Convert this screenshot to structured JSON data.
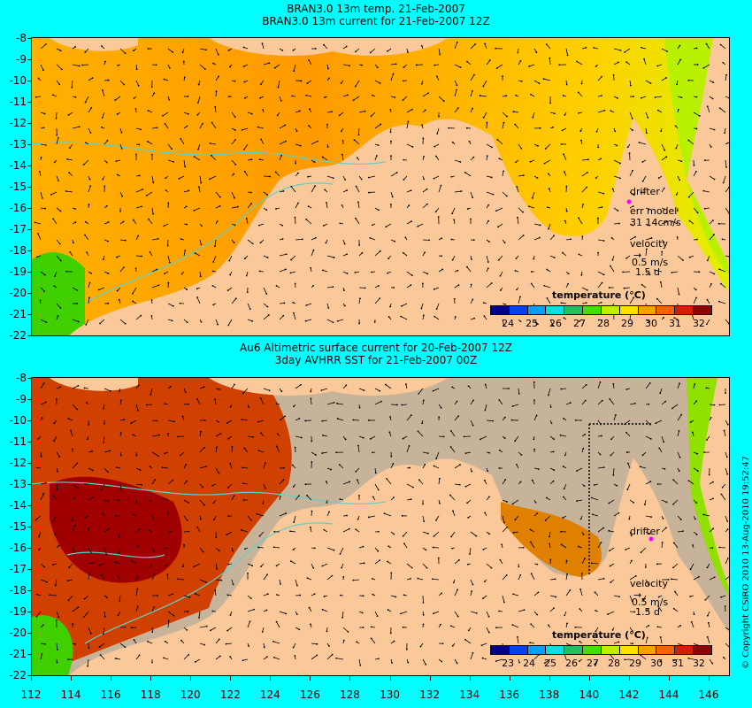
{
  "top_panel": {
    "title_line1": "BRAN3.0 13m temp. 21-Feb-2007",
    "title_line2": "BRAN3.0 13m current for 21-Feb-2007 12Z",
    "drifter_label": "drifter",
    "err_model_label": "err model",
    "err_model_value": "31 14cm/s",
    "velocity_label": "velocity",
    "velocity_scale": "0.5 m/s",
    "velocity_time": "1.5 d",
    "colorbar_title": "temperature (°C)",
    "colorbar_ticks": [
      "24",
      "25",
      "26",
      "27",
      "28",
      "29",
      "30",
      "31",
      "32"
    ]
  },
  "bottom_panel": {
    "title_line1": "Au6 Altimetric surface current for 20-Feb-2007 12Z",
    "title_line2": "3day AVHRR SST for 21-Feb-2007 00Z",
    "drifter_label": "drifter",
    "velocity_label": "velocity",
    "velocity_scale": "0.5 m/s",
    "velocity_time": "1.5 d",
    "colorbar_title": "temperature (°C)",
    "colorbar_ticks": [
      "23",
      "24",
      "25",
      "26",
      "27",
      "28",
      "29",
      "30",
      "31",
      "32"
    ]
  },
  "y_ticks": [
    "-8",
    "-9",
    "-10",
    "-11",
    "-12",
    "-13",
    "-14",
    "-15",
    "-16",
    "-17",
    "-18",
    "-19",
    "-20",
    "-21",
    "-22"
  ],
  "x_ticks": [
    "112",
    "114",
    "116",
    "118",
    "120",
    "122",
    "124",
    "126",
    "128",
    "130",
    "132",
    "134",
    "136",
    "138",
    "140",
    "142",
    "144",
    "146"
  ],
  "copyright": "© Copyright CSIRO 2010   13-Aug-2010 19:52:47",
  "colors": {
    "background": "#00ffff",
    "land": "#fbc89a",
    "cloud": "#c7b29a",
    "contour": "#5fd0c8",
    "drifter": "#ff00ff",
    "colormap": [
      "#00008f",
      "#0040ff",
      "#00a0ff",
      "#00e0e0",
      "#20c060",
      "#40e000",
      "#c0f000",
      "#ffe000",
      "#ffa000",
      "#ff6000",
      "#d02000",
      "#900000"
    ]
  }
}
